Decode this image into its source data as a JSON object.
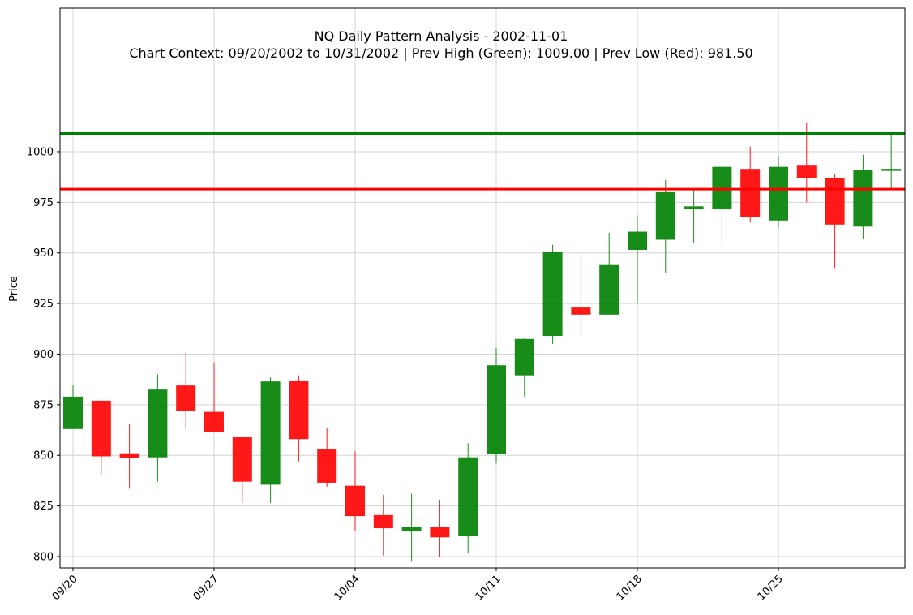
{
  "chart_data": {
    "type": "candlestick",
    "title": "NQ Daily Pattern Analysis - 2002-11-01",
    "subtitle": "Chart Context: 09/20/2002 to 10/31/2002 | Prev High (Green): 1009.00 | Prev Low (Red): 981.50",
    "ylabel": "Price",
    "xlabel": "",
    "ylim": [
      795.5,
      1016.5
    ],
    "yticks": [
      800,
      825,
      850,
      875,
      900,
      925,
      950,
      975,
      1000
    ],
    "grid": true,
    "up_color": "#008000",
    "down_color": "#ff0000",
    "xticks": [
      {
        "index": 0,
        "label": "09/20"
      },
      {
        "index": 5,
        "label": "09/27"
      },
      {
        "index": 10,
        "label": "10/04"
      },
      {
        "index": 15,
        "label": "10/11"
      },
      {
        "index": 20,
        "label": "10/18"
      },
      {
        "index": 25,
        "label": "10/25"
      }
    ],
    "candles": [
      {
        "date": "09/20",
        "open": 863.0,
        "high": 884.5,
        "low": 863.0,
        "close": 879.0
      },
      {
        "date": "09/23",
        "open": 877.0,
        "high": 877.0,
        "low": 840.5,
        "close": 849.5
      },
      {
        "date": "09/24",
        "open": 851.0,
        "high": 865.5,
        "low": 833.5,
        "close": 848.5
      },
      {
        "date": "09/25",
        "open": 849.0,
        "high": 890.0,
        "low": 837.0,
        "close": 882.5
      },
      {
        "date": "09/26",
        "open": 884.5,
        "high": 901.0,
        "low": 863.0,
        "close": 872.0
      },
      {
        "date": "09/27",
        "open": 871.5,
        "high": 896.0,
        "low": 861.5,
        "close": 861.5
      },
      {
        "date": "09/30",
        "open": 859.0,
        "high": 859.0,
        "low": 826.5,
        "close": 837.0
      },
      {
        "date": "10/01",
        "open": 835.5,
        "high": 888.5,
        "low": 826.5,
        "close": 886.5
      },
      {
        "date": "10/02",
        "open": 887.0,
        "high": 889.5,
        "low": 847.0,
        "close": 858.0
      },
      {
        "date": "10/03",
        "open": 853.0,
        "high": 863.5,
        "low": 834.5,
        "close": 836.5
      },
      {
        "date": "10/04",
        "open": 835.0,
        "high": 852.0,
        "low": 812.5,
        "close": 820.0
      },
      {
        "date": "10/07",
        "open": 820.5,
        "high": 830.5,
        "low": 800.5,
        "close": 814.0
      },
      {
        "date": "10/08",
        "open": 812.5,
        "high": 831.0,
        "low": 797.5,
        "close": 814.5
      },
      {
        "date": "10/09",
        "open": 814.5,
        "high": 828.0,
        "low": 800.0,
        "close": 809.5
      },
      {
        "date": "10/10",
        "open": 810.0,
        "high": 856.0,
        "low": 801.5,
        "close": 849.0
      },
      {
        "date": "10/11",
        "open": 850.5,
        "high": 903.0,
        "low": 846.0,
        "close": 894.5
      },
      {
        "date": "10/14",
        "open": 889.5,
        "high": 908.0,
        "low": 879.0,
        "close": 907.5
      },
      {
        "date": "10/15",
        "open": 909.0,
        "high": 954.0,
        "low": 905.0,
        "close": 950.5
      },
      {
        "date": "10/16",
        "open": 923.0,
        "high": 948.0,
        "low": 909.0,
        "close": 919.5
      },
      {
        "date": "10/17",
        "open": 919.5,
        "high": 960.0,
        "low": 919.5,
        "close": 944.0
      },
      {
        "date": "10/18",
        "open": 951.5,
        "high": 968.5,
        "low": 925.0,
        "close": 960.5
      },
      {
        "date": "10/21",
        "open": 956.5,
        "high": 986.0,
        "low": 940.0,
        "close": 980.0
      },
      {
        "date": "10/22",
        "open": 971.5,
        "high": 981.0,
        "low": 955.0,
        "close": 973.0
      },
      {
        "date": "10/23",
        "open": 971.5,
        "high": 993.0,
        "low": 955.0,
        "close": 992.5
      },
      {
        "date": "10/24",
        "open": 991.5,
        "high": 1002.5,
        "low": 965.0,
        "close": 967.5
      },
      {
        "date": "10/25",
        "open": 966.0,
        "high": 998.0,
        "low": 962.5,
        "close": 992.5
      },
      {
        "date": "10/28",
        "open": 993.5,
        "high": 1014.5,
        "low": 975.0,
        "close": 987.0
      },
      {
        "date": "10/29",
        "open": 987.0,
        "high": 989.0,
        "low": 942.5,
        "close": 964.0
      },
      {
        "date": "10/30",
        "open": 963.0,
        "high": 998.5,
        "low": 957.0,
        "close": 991.0
      },
      {
        "date": "10/31",
        "open": 990.5,
        "high": 1009.0,
        "low": 981.5,
        "close": 991.5
      }
    ],
    "reference_lines": [
      {
        "label": "Prev High (Green)",
        "value": 1009.0,
        "color": "#008000"
      },
      {
        "label": "Prev Low (Red)",
        "value": 981.5,
        "color": "#ff0000"
      }
    ]
  }
}
